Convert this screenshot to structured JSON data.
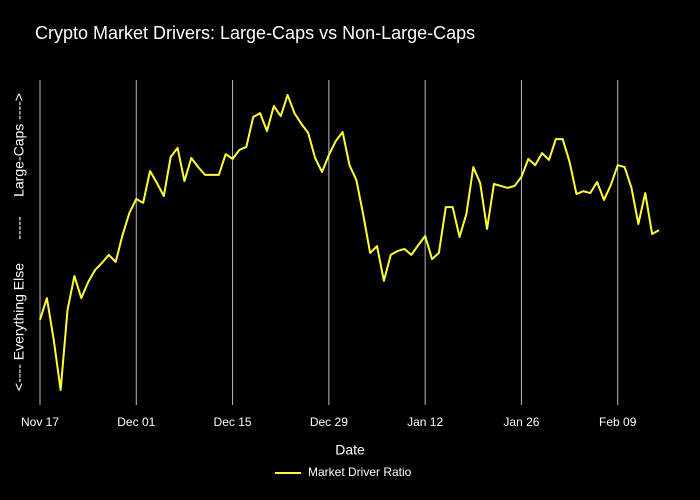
{
  "chart_data": {
    "type": "line",
    "title": "Crypto Market Drivers: Large-Caps vs Non-Large-Caps",
    "x_label": "Date",
    "y_label": "<---- Everything Else      -----     Large-Caps ---->",
    "categories": [
      "Nov 17",
      null,
      null,
      null,
      null,
      null,
      null,
      null,
      null,
      null,
      null,
      null,
      null,
      null,
      "Dec 01",
      null,
      null,
      null,
      null,
      null,
      null,
      null,
      null,
      null,
      null,
      null,
      null,
      null,
      "Dec 15",
      null,
      null,
      null,
      null,
      null,
      null,
      null,
      null,
      null,
      null,
      null,
      null,
      null,
      "Dec 29",
      null,
      null,
      null,
      null,
      null,
      null,
      null,
      null,
      null,
      null,
      null,
      null,
      null,
      "Jan 12",
      null,
      null,
      null,
      null,
      null,
      null,
      null,
      null,
      null,
      null,
      null,
      null,
      null,
      "Jan 26",
      null,
      null,
      null,
      null,
      null,
      null,
      null,
      null,
      null,
      null,
      null,
      null,
      null,
      "Feb 09",
      null,
      null,
      null,
      null,
      null,
      null
    ],
    "series": [
      {
        "name": "Market Driver Ratio",
        "color": "#ffff33",
        "values": [
          26.2,
          32.9,
          20.0,
          4.6,
          29.2,
          39.7,
          32.9,
          37.8,
          41.5,
          43.7,
          46.2,
          44.0,
          52.3,
          59.1,
          63.4,
          62.2,
          72.0,
          68.3,
          64.3,
          76.3,
          79.1,
          68.9,
          76.0,
          73.2,
          70.8,
          70.8,
          70.8,
          77.2,
          75.7,
          78.5,
          79.4,
          88.6,
          89.8,
          84.3,
          92.0,
          88.9,
          95.4,
          89.8,
          86.5,
          83.7,
          76.0,
          71.7,
          76.9,
          81.2,
          84.0,
          73.8,
          69.2,
          58.5,
          46.8,
          48.9,
          38.2,
          46.2,
          47.4,
          48.0,
          46.2,
          49.2,
          52.0,
          44.9,
          46.8,
          60.9,
          60.9,
          51.7,
          58.8,
          73.2,
          68.3,
          54.2,
          68.0,
          67.4,
          66.8,
          67.4,
          70.2,
          75.7,
          73.8,
          77.5,
          75.4,
          81.8,
          81.8,
          74.8,
          64.9,
          65.8,
          65.2,
          68.6,
          63.1,
          67.7,
          73.8,
          73.2,
          66.8,
          55.7,
          65.2,
          52.6,
          53.8
        ]
      }
    ],
    "ylim": [
      0,
      100
    ],
    "grid": true,
    "legend": "bottom"
  }
}
